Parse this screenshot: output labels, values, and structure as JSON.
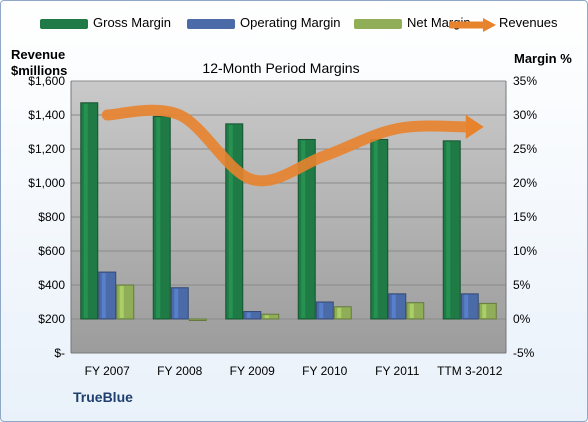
{
  "chart_data": {
    "type": "bar",
    "title": "12-Month Period Margins",
    "brand_label": "TrueBlue",
    "y_left_label": [
      "Revenue",
      "$millions"
    ],
    "y_right_label": "Margin %",
    "y_left_range": [
      0,
      1600
    ],
    "y_right_range": [
      -5,
      35
    ],
    "y_left_ticks": [
      "$-",
      "$200",
      "$400",
      "$600",
      "$800",
      "$1,000",
      "$1,200",
      "$1,400",
      "$1,600"
    ],
    "y_right_ticks": [
      "-5%",
      "0%",
      "5%",
      "10%",
      "15%",
      "20%",
      "25%",
      "30%",
      "35%"
    ],
    "categories": [
      "FY 2007",
      "FY 2008",
      "FY 2009",
      "FY 2010",
      "FY 2011",
      "TTM 3-2012"
    ],
    "series": [
      {
        "name": "Gross Margin",
        "kind": "bar",
        "axis": "right",
        "color": "#1f7a45",
        "values": [
          31.8,
          29.8,
          28.7,
          26.4,
          26.4,
          26.2
        ]
      },
      {
        "name": "Operating Margin",
        "kind": "bar",
        "axis": "right",
        "color": "#4a6aa8",
        "values": [
          6.9,
          4.6,
          1.1,
          2.5,
          3.7,
          3.7
        ]
      },
      {
        "name": "Net Margin",
        "kind": "bar",
        "axis": "right",
        "color": "#8fae57",
        "values": [
          5.0,
          -0.2,
          0.7,
          1.8,
          2.4,
          2.3
        ]
      },
      {
        "name": "Revenues",
        "kind": "line",
        "axis": "left",
        "color": "#e8832d",
        "values": [
          1400,
          1400,
          1020,
          1160,
          1320,
          1330
        ]
      }
    ],
    "grid": true,
    "legend_position": "top"
  }
}
